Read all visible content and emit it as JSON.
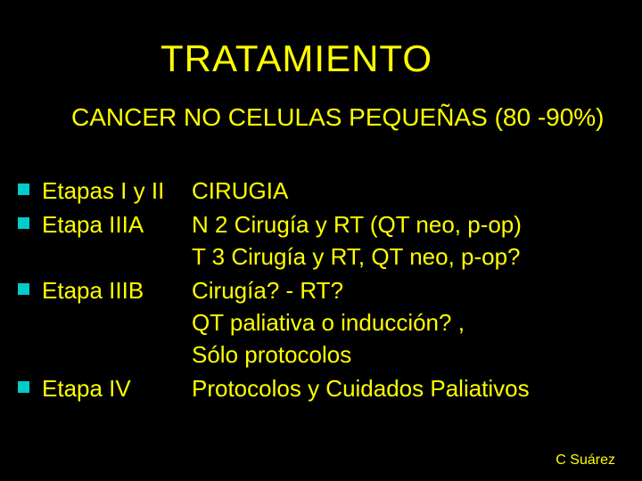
{
  "background_color": "#000000",
  "text_color": "#ffff00",
  "bullet_color": "#00cccc",
  "title": "TRATAMIENTO",
  "title_fontsize": 42,
  "subtitle": "CANCER NO CELULAS PEQUEÑAS   (80 -90%)",
  "subtitle_fontsize": 28,
  "body_fontsize": 26,
  "body_lineheight": 36,
  "rows": [
    {
      "stage": "Etapas I y II",
      "desc": "CIRUGIA"
    },
    {
      "stage": "Etapa IIIA",
      "desc": "N 2 Cirugía y RT  (QT neo, p-op)\nT 3 Cirugía y RT, QT neo, p-op?"
    },
    {
      "stage": "Etapa IIIB",
      "desc": "Cirugía? - RT?\nQT paliativa o inducción? ,\n         Sólo protocolos"
    },
    {
      "stage": "Etapa IV",
      "desc": "Protocolos y Cuidados Paliativos"
    }
  ],
  "footer": "C Suárez",
  "footer_fontsize": 16
}
